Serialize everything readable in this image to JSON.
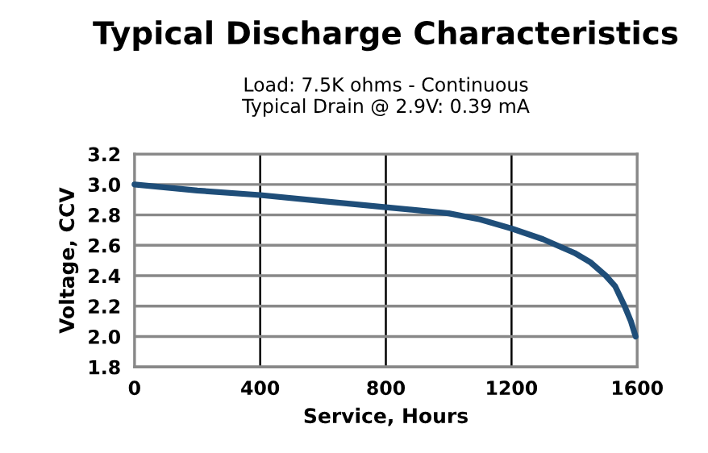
{
  "chart_data": {
    "type": "line",
    "title": "Typical Discharge Characteristics",
    "subtitle": "Load: 7.5K ohms - Continuous\nTypical Drain @ 2.9V: 0.39 mA",
    "xlabel": "Service, Hours",
    "ylabel": "Voltage, CCV",
    "x": [
      0,
      200,
      400,
      600,
      800,
      1000,
      1100,
      1200,
      1300,
      1400,
      1450,
      1500,
      1530,
      1560,
      1580,
      1595
    ],
    "series": [
      {
        "color": "#1f4e79",
        "values": [
          3.0,
          2.96,
          2.93,
          2.89,
          2.85,
          2.81,
          2.77,
          2.71,
          2.64,
          2.55,
          2.49,
          2.4,
          2.33,
          2.2,
          2.1,
          2.0
        ]
      }
    ],
    "xlim": [
      0,
      1600
    ],
    "xticks": [
      0,
      400,
      800,
      1200,
      1600
    ],
    "ylim": [
      1.8,
      3.2
    ],
    "yticks": [
      {
        "value": 1.8,
        "label": "1.8"
      },
      {
        "value": 2.0,
        "label": "2.0"
      },
      {
        "value": 2.2,
        "label": "2.2"
      },
      {
        "value": 2.4,
        "label": "2.4"
      },
      {
        "value": 2.6,
        "label": "2.6"
      },
      {
        "value": 2.8,
        "label": "2.8"
      },
      {
        "value": 3.0,
        "label": "3.0"
      },
      {
        "value": 3.2,
        "label": "3.2"
      }
    ],
    "grid": true,
    "marker": "none",
    "line_style": "solid",
    "legend": false
  }
}
